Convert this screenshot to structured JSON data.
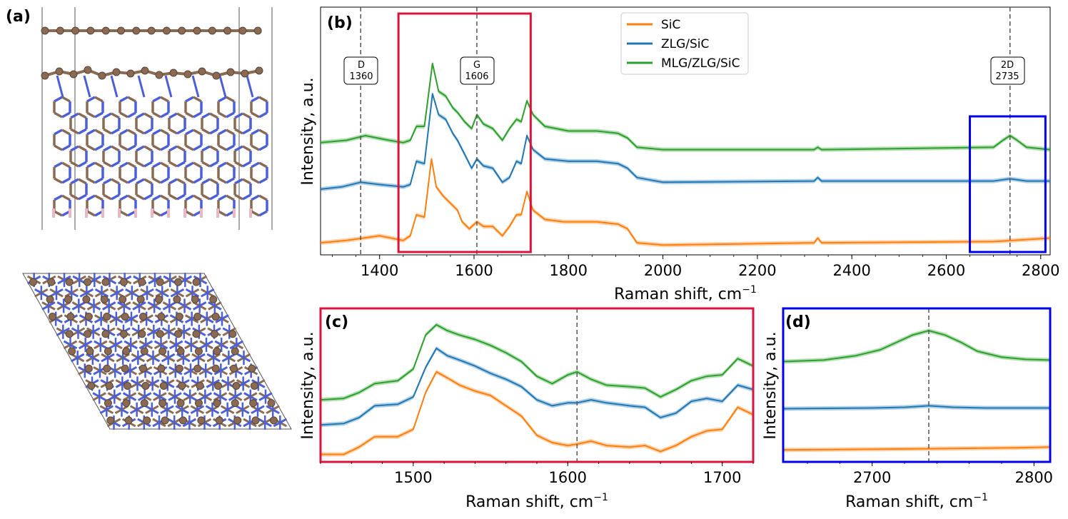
{
  "figure": {
    "panel_a_label": "(a)",
    "colors": {
      "SiC": "#ff7f0e",
      "ZLG/SiC": "#1f77b4",
      "MLG/ZLG/SiC": "#2ca02c",
      "carbon": "#8a6a52",
      "silicon": "#4a5fd8",
      "hydrogen": "#e8b9c4",
      "box_c": "#dc143c",
      "box_d": "#0000ee"
    }
  },
  "chart_data": [
    {
      "id": "b",
      "type": "line",
      "panel_label": "(b)",
      "xlabel": "Raman shift, cm",
      "xlabel_sup": "−1",
      "ylabel": "Intensity, a.u.",
      "xlim": [
        1275,
        2820
      ],
      "ylim": [
        0,
        1.0
      ],
      "xticks": [
        "1400",
        "1600",
        "1800",
        "2000",
        "2200",
        "2400",
        "2600",
        "2800"
      ],
      "legend": {
        "position": "top-center",
        "entries": [
          "SiC",
          "ZLG/SiC",
          "MLG/ZLG/SiC"
        ]
      },
      "annotations": [
        {
          "label": "D",
          "value": "1360",
          "x": 1360
        },
        {
          "label": "G",
          "value": "1606",
          "x": 1606
        },
        {
          "label": "2D",
          "value": "2735",
          "x": 2735
        }
      ],
      "zoom_boxes": [
        {
          "panel": "c",
          "x_range": [
            1440,
            1720
          ]
        },
        {
          "panel": "d",
          "x_range": [
            2650,
            2810
          ]
        }
      ],
      "series": [
        {
          "name": "SiC",
          "offset": 0.03,
          "points": [
            [
              1275,
              0.02
            ],
            [
              1330,
              0.03
            ],
            [
              1400,
              0.05
            ],
            [
              1450,
              0.03
            ],
            [
              1465,
              0.05
            ],
            [
              1478,
              0.14
            ],
            [
              1495,
              0.13
            ],
            [
              1510,
              0.38
            ],
            [
              1520,
              0.26
            ],
            [
              1535,
              0.22
            ],
            [
              1550,
              0.19
            ],
            [
              1565,
              0.16
            ],
            [
              1575,
              0.11
            ],
            [
              1590,
              0.08
            ],
            [
              1606,
              0.11
            ],
            [
              1620,
              0.09
            ],
            [
              1640,
              0.09
            ],
            [
              1660,
              0.05
            ],
            [
              1675,
              0.09
            ],
            [
              1690,
              0.14
            ],
            [
              1700,
              0.14
            ],
            [
              1712,
              0.24
            ],
            [
              1725,
              0.16
            ],
            [
              1750,
              0.12
            ],
            [
              1790,
              0.11
            ],
            [
              1860,
              0.11
            ],
            [
              1905,
              0.1
            ],
            [
              1925,
              0.08
            ],
            [
              1945,
              0.02
            ],
            [
              2000,
              0.01
            ],
            [
              2320,
              0.02
            ],
            [
              2328,
              0.04
            ],
            [
              2336,
              0.02
            ],
            [
              2700,
              0.025
            ],
            [
              2820,
              0.04
            ]
          ]
        },
        {
          "name": "ZLG/SiC",
          "offset": 0.27,
          "points": [
            [
              1275,
              0.25
            ],
            [
              1320,
              0.26
            ],
            [
              1360,
              0.28
            ],
            [
              1400,
              0.27
            ],
            [
              1450,
              0.26
            ],
            [
              1465,
              0.27
            ],
            [
              1478,
              0.37
            ],
            [
              1495,
              0.36
            ],
            [
              1512,
              0.66
            ],
            [
              1525,
              0.57
            ],
            [
              1540,
              0.55
            ],
            [
              1555,
              0.49
            ],
            [
              1565,
              0.46
            ],
            [
              1580,
              0.4
            ],
            [
              1595,
              0.34
            ],
            [
              1606,
              0.38
            ],
            [
              1620,
              0.35
            ],
            [
              1640,
              0.34
            ],
            [
              1660,
              0.28
            ],
            [
              1675,
              0.3
            ],
            [
              1690,
              0.37
            ],
            [
              1700,
              0.36
            ],
            [
              1712,
              0.48
            ],
            [
              1725,
              0.42
            ],
            [
              1750,
              0.38
            ],
            [
              1800,
              0.37
            ],
            [
              1860,
              0.37
            ],
            [
              1905,
              0.36
            ],
            [
              1925,
              0.34
            ],
            [
              1945,
              0.3
            ],
            [
              2000,
              0.28
            ],
            [
              2320,
              0.285
            ],
            [
              2328,
              0.3
            ],
            [
              2336,
              0.285
            ],
            [
              2700,
              0.285
            ],
            [
              2735,
              0.295
            ],
            [
              2770,
              0.285
            ],
            [
              2820,
              0.285
            ]
          ]
        },
        {
          "name": "MLG/ZLG/SiC",
          "offset": 0.44,
          "points": [
            [
              1275,
              0.45
            ],
            [
              1330,
              0.46
            ],
            [
              1370,
              0.48
            ],
            [
              1420,
              0.46
            ],
            [
              1450,
              0.45
            ],
            [
              1465,
              0.46
            ],
            [
              1478,
              0.52
            ],
            [
              1495,
              0.52
            ],
            [
              1512,
              0.79
            ],
            [
              1525,
              0.67
            ],
            [
              1540,
              0.65
            ],
            [
              1555,
              0.6
            ],
            [
              1565,
              0.58
            ],
            [
              1580,
              0.54
            ],
            [
              1595,
              0.51
            ],
            [
              1606,
              0.57
            ],
            [
              1620,
              0.53
            ],
            [
              1640,
              0.51
            ],
            [
              1660,
              0.46
            ],
            [
              1675,
              0.51
            ],
            [
              1690,
              0.55
            ],
            [
              1700,
              0.54
            ],
            [
              1712,
              0.63
            ],
            [
              1725,
              0.57
            ],
            [
              1750,
              0.52
            ],
            [
              1800,
              0.5
            ],
            [
              1860,
              0.5
            ],
            [
              1905,
              0.49
            ],
            [
              1925,
              0.47
            ],
            [
              1945,
              0.43
            ],
            [
              2000,
              0.42
            ],
            [
              2320,
              0.42
            ],
            [
              2328,
              0.43
            ],
            [
              2336,
              0.42
            ],
            [
              2700,
              0.43
            ],
            [
              2720,
              0.46
            ],
            [
              2735,
              0.48
            ],
            [
              2750,
              0.46
            ],
            [
              2770,
              0.43
            ],
            [
              2820,
              0.42
            ]
          ]
        }
      ]
    },
    {
      "id": "c",
      "type": "line",
      "panel_label": "(c)",
      "xlabel": "Raman shift, cm",
      "xlabel_sup": "−1",
      "ylabel": "Intensity, a.u.",
      "xlim": [
        1440,
        1720
      ],
      "ylim": [
        0,
        1.0
      ],
      "xticks": [
        "1500",
        "1600",
        "1700"
      ],
      "vline": 1606,
      "series": [
        {
          "name": "SiC",
          "points": [
            [
              1440,
              0.03
            ],
            [
              1455,
              0.03
            ],
            [
              1465,
              0.08
            ],
            [
              1475,
              0.15
            ],
            [
              1490,
              0.15
            ],
            [
              1500,
              0.2
            ],
            [
              1508,
              0.45
            ],
            [
              1515,
              0.59
            ],
            [
              1522,
              0.55
            ],
            [
              1530,
              0.5
            ],
            [
              1540,
              0.46
            ],
            [
              1550,
              0.43
            ],
            [
              1560,
              0.36
            ],
            [
              1570,
              0.29
            ],
            [
              1580,
              0.16
            ],
            [
              1590,
              0.11
            ],
            [
              1600,
              0.09
            ],
            [
              1606,
              0.1
            ],
            [
              1615,
              0.12
            ],
            [
              1625,
              0.09
            ],
            [
              1640,
              0.08
            ],
            [
              1650,
              0.09
            ],
            [
              1660,
              0.05
            ],
            [
              1670,
              0.09
            ],
            [
              1680,
              0.15
            ],
            [
              1690,
              0.19
            ],
            [
              1700,
              0.2
            ],
            [
              1710,
              0.35
            ],
            [
              1720,
              0.3
            ]
          ]
        },
        {
          "name": "ZLG/SiC",
          "points": [
            [
              1440,
              0.23
            ],
            [
              1455,
              0.24
            ],
            [
              1465,
              0.28
            ],
            [
              1475,
              0.36
            ],
            [
              1490,
              0.37
            ],
            [
              1500,
              0.42
            ],
            [
              1508,
              0.62
            ],
            [
              1515,
              0.75
            ],
            [
              1522,
              0.7
            ],
            [
              1530,
              0.67
            ],
            [
              1540,
              0.63
            ],
            [
              1550,
              0.58
            ],
            [
              1560,
              0.54
            ],
            [
              1570,
              0.49
            ],
            [
              1580,
              0.4
            ],
            [
              1590,
              0.36
            ],
            [
              1600,
              0.38
            ],
            [
              1606,
              0.38
            ],
            [
              1615,
              0.4
            ],
            [
              1625,
              0.38
            ],
            [
              1640,
              0.36
            ],
            [
              1650,
              0.35
            ],
            [
              1660,
              0.28
            ],
            [
              1670,
              0.31
            ],
            [
              1680,
              0.39
            ],
            [
              1690,
              0.41
            ],
            [
              1700,
              0.39
            ],
            [
              1710,
              0.5
            ],
            [
              1720,
              0.47
            ]
          ]
        },
        {
          "name": "MLG/ZLG/SiC",
          "points": [
            [
              1440,
              0.4
            ],
            [
              1455,
              0.41
            ],
            [
              1465,
              0.45
            ],
            [
              1475,
              0.51
            ],
            [
              1490,
              0.53
            ],
            [
              1500,
              0.61
            ],
            [
              1508,
              0.84
            ],
            [
              1515,
              0.91
            ],
            [
              1522,
              0.87
            ],
            [
              1530,
              0.84
            ],
            [
              1540,
              0.81
            ],
            [
              1550,
              0.77
            ],
            [
              1560,
              0.72
            ],
            [
              1570,
              0.66
            ],
            [
              1580,
              0.56
            ],
            [
              1590,
              0.51
            ],
            [
              1600,
              0.57
            ],
            [
              1606,
              0.59
            ],
            [
              1615,
              0.54
            ],
            [
              1625,
              0.5
            ],
            [
              1640,
              0.49
            ],
            [
              1650,
              0.48
            ],
            [
              1660,
              0.42
            ],
            [
              1670,
              0.47
            ],
            [
              1680,
              0.53
            ],
            [
              1690,
              0.56
            ],
            [
              1700,
              0.57
            ],
            [
              1710,
              0.68
            ],
            [
              1720,
              0.63
            ]
          ]
        }
      ]
    },
    {
      "id": "d",
      "type": "line",
      "panel_label": "(d)",
      "xlabel": "Raman shift, cm",
      "xlabel_sup": "−1",
      "ylabel": "Intensity, a.u.",
      "xlim": [
        2645,
        2810
      ],
      "ylim": [
        0,
        1.0
      ],
      "xticks": [
        "2700",
        "2800"
      ],
      "vline": 2735,
      "series": [
        {
          "name": "SiC",
          "points": [
            [
              2645,
              0.06
            ],
            [
              2700,
              0.065
            ],
            [
              2750,
              0.07
            ],
            [
              2790,
              0.075
            ],
            [
              2810,
              0.08
            ]
          ]
        },
        {
          "name": "ZLG/SiC",
          "points": [
            [
              2645,
              0.34
            ],
            [
              2700,
              0.345
            ],
            [
              2720,
              0.35
            ],
            [
              2735,
              0.36
            ],
            [
              2750,
              0.35
            ],
            [
              2770,
              0.345
            ],
            [
              2810,
              0.345
            ]
          ]
        },
        {
          "name": "MLG/ZLG/SiC",
          "points": [
            [
              2645,
              0.66
            ],
            [
              2670,
              0.67
            ],
            [
              2690,
              0.7
            ],
            [
              2705,
              0.74
            ],
            [
              2715,
              0.79
            ],
            [
              2725,
              0.84
            ],
            [
              2735,
              0.87
            ],
            [
              2745,
              0.84
            ],
            [
              2755,
              0.79
            ],
            [
              2765,
              0.73
            ],
            [
              2780,
              0.69
            ],
            [
              2795,
              0.675
            ],
            [
              2810,
              0.67
            ]
          ]
        }
      ]
    }
  ]
}
